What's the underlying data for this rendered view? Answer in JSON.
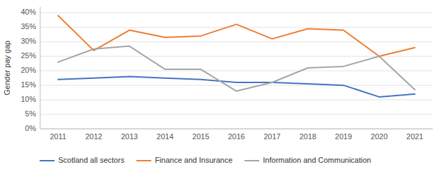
{
  "chart_data": {
    "type": "line",
    "ylabel": "Gender pay gap",
    "categories": [
      "2011",
      "2012",
      "2013",
      "2014",
      "2015",
      "2016",
      "2017",
      "2018",
      "2019",
      "2020",
      "2021"
    ],
    "series": [
      {
        "name": "Scotland all sectors",
        "color": "#4472c4",
        "values": [
          17,
          17.5,
          18,
          17.5,
          17,
          16,
          16,
          15.5,
          15,
          11,
          12
        ]
      },
      {
        "name": "Finance and Insurance",
        "color": "#ed7d31",
        "values": [
          39,
          27,
          34,
          31.5,
          32,
          36,
          31,
          34.5,
          34,
          25,
          28
        ]
      },
      {
        "name": "Information and Communication",
        "color": "#a5a5a5",
        "values": [
          23,
          27.5,
          28.5,
          20.5,
          20.5,
          13,
          16,
          21,
          21.5,
          25,
          13.5
        ]
      }
    ],
    "ylim": [
      0,
      42
    ],
    "yticks": [
      {
        "value": 0,
        "label": "0%"
      },
      {
        "value": 5,
        "label": "5%"
      },
      {
        "value": 10,
        "label": "10%"
      },
      {
        "value": 15,
        "label": "15%"
      },
      {
        "value": 20,
        "label": "20%"
      },
      {
        "value": 25,
        "label": "25%"
      },
      {
        "value": 30,
        "label": "30%"
      },
      {
        "value": 35,
        "label": "35%"
      },
      {
        "value": 40,
        "label": "40%"
      }
    ],
    "grid": true,
    "legend": "bottom"
  }
}
